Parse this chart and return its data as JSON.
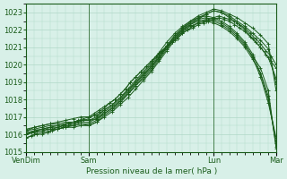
{
  "xlabel": "Pression niveau de la mer( hPa )",
  "ylabel": "",
  "ylim": [
    1015,
    1023.5
  ],
  "xlim": [
    0,
    96
  ],
  "yticks": [
    1015,
    1016,
    1017,
    1018,
    1019,
    1020,
    1021,
    1022,
    1023
  ],
  "xtick_labels": [
    "VenDim",
    "Sam",
    "Lun",
    "Mar"
  ],
  "xtick_positions": [
    0,
    24,
    72,
    96
  ],
  "bg_color": "#d8f0e8",
  "grid_color": "#b0d8c8",
  "line_color": "#1a5c1a",
  "line_color2": "#2d7a2d",
  "series": [
    {
      "x": [
        0,
        48,
        72,
        84,
        90
      ],
      "y": [
        1016.0,
        1019.0,
        1022.5,
        1022.8,
        1021.2
      ]
    },
    {
      "x": [
        0,
        48,
        72,
        84,
        90
      ],
      "y": [
        1015.8,
        1019.2,
        1022.3,
        1022.6,
        1021.0
      ]
    },
    {
      "x": [
        0,
        24,
        48,
        60,
        72,
        84,
        90,
        96
      ],
      "y": [
        1016.2,
        1017.0,
        1019.5,
        1021.5,
        1023.0,
        1022.5,
        1021.5,
        1018.5
      ]
    },
    {
      "x": [
        0,
        24,
        48,
        60,
        72,
        84,
        90,
        96
      ],
      "y": [
        1016.0,
        1016.8,
        1019.8,
        1021.8,
        1023.2,
        1022.3,
        1021.3,
        1019.0
      ]
    },
    {
      "x": [
        0,
        24,
        48,
        60,
        72,
        84,
        90,
        96
      ],
      "y": [
        1015.8,
        1016.5,
        1020.0,
        1022.0,
        1023.4,
        1022.0,
        1021.0,
        1019.5
      ]
    },
    {
      "x": [
        0,
        48,
        72,
        90,
        96
      ],
      "y": [
        1016.2,
        1019.5,
        1022.0,
        1019.5,
        1015.2
      ]
    },
    {
      "x": [
        0,
        48,
        72,
        90,
        96
      ],
      "y": [
        1016.0,
        1019.8,
        1022.2,
        1019.0,
        1015.5
      ]
    },
    {
      "x": [
        0,
        48,
        72,
        90,
        96
      ],
      "y": [
        1016.1,
        1020.2,
        1022.4,
        1018.5,
        1015.8
      ]
    },
    {
      "x": [
        0,
        48,
        72,
        90,
        96
      ],
      "y": [
        1016.3,
        1020.5,
        1022.1,
        1018.0,
        1015.3
      ]
    }
  ],
  "detail_series": [
    {
      "x": [
        0,
        2,
        4,
        6,
        8,
        10,
        12,
        14,
        16,
        18,
        20,
        22,
        24,
        26,
        28,
        30,
        32,
        34,
        36,
        38,
        40,
        42,
        44,
        46,
        48,
        50,
        52,
        54,
        56,
        58,
        60,
        62,
        64,
        66,
        68,
        70,
        72,
        74,
        76,
        78,
        80,
        82,
        84,
        86,
        88,
        90,
        92,
        94,
        96
      ],
      "y": [
        1016.0,
        1016.1,
        1016.2,
        1016.2,
        1016.3,
        1016.3,
        1016.4,
        1016.5,
        1016.6,
        1016.7,
        1016.8,
        1016.9,
        1017.0,
        1017.2,
        1017.4,
        1017.6,
        1017.8,
        1018.0,
        1018.3,
        1018.6,
        1019.0,
        1019.3,
        1019.6,
        1019.9,
        1020.2,
        1020.5,
        1020.8,
        1021.0,
        1021.3,
        1021.5,
        1021.8,
        1022.0,
        1022.2,
        1022.4,
        1022.5,
        1022.6,
        1022.7,
        1022.8,
        1022.7,
        1022.6,
        1022.5,
        1022.3,
        1022.1,
        1021.8,
        1021.5,
        1021.2,
        1020.8,
        1020.5,
        1020.0
      ]
    },
    {
      "x": [
        0,
        2,
        4,
        6,
        8,
        10,
        12,
        14,
        16,
        18,
        20,
        22,
        24,
        26,
        28,
        30,
        32,
        34,
        36,
        38,
        40,
        42,
        44,
        46,
        48,
        50,
        52,
        54,
        56,
        58,
        60,
        62,
        64,
        66,
        68,
        70,
        72,
        74,
        76,
        78,
        80,
        82,
        84,
        86,
        88,
        90,
        92,
        94,
        96
      ],
      "y": [
        1015.8,
        1015.9,
        1016.0,
        1016.0,
        1016.1,
        1016.2,
        1016.3,
        1016.4,
        1016.5,
        1016.6,
        1016.7,
        1016.8,
        1016.9,
        1017.1,
        1017.3,
        1017.5,
        1017.8,
        1018.0,
        1018.3,
        1018.6,
        1019.0,
        1019.3,
        1019.6,
        1019.9,
        1020.2,
        1020.5,
        1020.7,
        1021.0,
        1021.3,
        1021.5,
        1021.8,
        1022.0,
        1022.1,
        1022.3,
        1022.4,
        1022.5,
        1022.6,
        1022.7,
        1022.6,
        1022.5,
        1022.3,
        1022.1,
        1021.9,
        1021.6,
        1021.3,
        1021.0,
        1020.6,
        1020.2,
        1019.8
      ]
    },
    {
      "x": [
        0,
        3,
        6,
        9,
        12,
        15,
        18,
        21,
        24,
        27,
        30,
        33,
        36,
        39,
        42,
        45,
        48,
        51,
        54,
        57,
        60,
        63,
        66,
        69,
        72,
        75,
        78,
        81,
        84,
        87,
        90,
        93,
        96
      ],
      "y": [
        1016.2,
        1016.4,
        1016.5,
        1016.6,
        1016.7,
        1016.8,
        1016.9,
        1017.0,
        1017.0,
        1017.1,
        1017.4,
        1017.7,
        1018.1,
        1018.5,
        1019.0,
        1019.4,
        1019.9,
        1020.4,
        1021.0,
        1021.6,
        1022.1,
        1022.5,
        1022.8,
        1023.0,
        1023.2,
        1023.1,
        1022.9,
        1022.7,
        1022.4,
        1022.1,
        1021.7,
        1021.2,
        1018.5
      ]
    },
    {
      "x": [
        0,
        3,
        6,
        9,
        12,
        15,
        18,
        21,
        24,
        27,
        30,
        33,
        36,
        39,
        42,
        45,
        48,
        51,
        54,
        57,
        60,
        63,
        66,
        69,
        72,
        75,
        78,
        81,
        84,
        87,
        90,
        93,
        96
      ],
      "y": [
        1016.0,
        1016.2,
        1016.3,
        1016.4,
        1016.5,
        1016.6,
        1016.7,
        1016.8,
        1016.8,
        1016.9,
        1017.2,
        1017.5,
        1017.9,
        1018.3,
        1018.8,
        1019.2,
        1019.7,
        1020.3,
        1020.9,
        1021.5,
        1022.0,
        1022.4,
        1022.7,
        1022.9,
        1023.1,
        1023.0,
        1022.8,
        1022.5,
        1022.2,
        1021.8,
        1021.4,
        1020.9,
        1018.9
      ]
    },
    {
      "x": [
        0,
        3,
        6,
        9,
        12,
        15,
        18,
        21,
        24,
        27,
        30,
        33,
        36,
        39,
        42,
        45,
        48,
        51,
        54,
        57,
        60,
        63,
        66,
        69,
        72,
        75,
        78,
        81,
        84,
        87,
        90,
        93,
        96
      ],
      "y": [
        1015.8,
        1016.0,
        1016.1,
        1016.2,
        1016.3,
        1016.4,
        1016.5,
        1016.6,
        1016.5,
        1016.7,
        1017.0,
        1017.3,
        1017.7,
        1018.1,
        1018.6,
        1019.1,
        1019.6,
        1020.2,
        1020.8,
        1021.4,
        1021.9,
        1022.3,
        1022.6,
        1022.9,
        1023.1,
        1023.0,
        1022.7,
        1022.4,
        1022.0,
        1021.5,
        1021.0,
        1020.4,
        1019.2
      ]
    },
    {
      "x": [
        0,
        3,
        6,
        9,
        12,
        15,
        18,
        21,
        24,
        27,
        30,
        33,
        36,
        39,
        42,
        45,
        48,
        51,
        54,
        57,
        60,
        63,
        66,
        69,
        72,
        75,
        78,
        81,
        84,
        87,
        90,
        93,
        96
      ],
      "y": [
        1016.2,
        1016.3,
        1016.4,
        1016.5,
        1016.5,
        1016.6,
        1016.6,
        1016.7,
        1016.7,
        1016.9,
        1017.3,
        1017.6,
        1018.0,
        1018.5,
        1019.0,
        1019.5,
        1020.0,
        1020.6,
        1021.1,
        1021.6,
        1022.0,
        1022.3,
        1022.5,
        1022.6,
        1022.5,
        1022.3,
        1022.0,
        1021.6,
        1021.1,
        1020.5,
        1019.8,
        1018.5,
        1015.2
      ]
    },
    {
      "x": [
        0,
        3,
        6,
        9,
        12,
        15,
        18,
        21,
        24,
        27,
        30,
        33,
        36,
        39,
        42,
        45,
        48,
        51,
        54,
        57,
        60,
        63,
        66,
        69,
        72,
        75,
        78,
        81,
        84,
        87,
        90,
        93,
        96
      ],
      "y": [
        1016.0,
        1016.1,
        1016.2,
        1016.3,
        1016.3,
        1016.4,
        1016.4,
        1016.5,
        1016.5,
        1016.7,
        1017.1,
        1017.4,
        1017.8,
        1018.3,
        1018.8,
        1019.3,
        1019.8,
        1020.4,
        1021.0,
        1021.5,
        1021.9,
        1022.2,
        1022.4,
        1022.5,
        1022.4,
        1022.2,
        1021.9,
        1021.5,
        1021.0,
        1020.3,
        1019.5,
        1018.0,
        1015.5
      ]
    },
    {
      "x": [
        0,
        3,
        6,
        9,
        12,
        15,
        18,
        21,
        24,
        27,
        30,
        33,
        36,
        39,
        42,
        45,
        48,
        51,
        54,
        57,
        60,
        63,
        66,
        69,
        72,
        75,
        78,
        81,
        84,
        87,
        90,
        93,
        96
      ],
      "y": [
        1016.1,
        1016.2,
        1016.3,
        1016.4,
        1016.4,
        1016.5,
        1016.5,
        1016.6,
        1016.6,
        1016.8,
        1017.2,
        1017.5,
        1017.9,
        1018.4,
        1018.9,
        1019.4,
        1019.9,
        1020.5,
        1021.1,
        1021.7,
        1022.1,
        1022.4,
        1022.6,
        1022.7,
        1022.6,
        1022.4,
        1022.1,
        1021.7,
        1021.2,
        1020.4,
        1019.3,
        1017.8,
        1015.8
      ]
    },
    {
      "x": [
        0,
        3,
        6,
        9,
        12,
        15,
        18,
        21,
        24,
        27,
        30,
        33,
        36,
        39,
        42,
        45,
        48,
        51,
        54,
        57,
        60,
        63,
        66,
        69,
        72,
        75,
        78,
        81,
        84,
        87,
        90,
        93,
        96
      ],
      "y": [
        1016.3,
        1016.4,
        1016.5,
        1016.6,
        1016.6,
        1016.7,
        1016.7,
        1016.8,
        1016.8,
        1017.0,
        1017.4,
        1017.7,
        1018.1,
        1018.6,
        1019.1,
        1019.6,
        1020.1,
        1020.7,
        1021.3,
        1021.8,
        1022.2,
        1022.5,
        1022.7,
        1022.8,
        1022.7,
        1022.5,
        1022.2,
        1021.8,
        1021.3,
        1020.6,
        1019.5,
        1018.2,
        1015.3
      ]
    }
  ]
}
